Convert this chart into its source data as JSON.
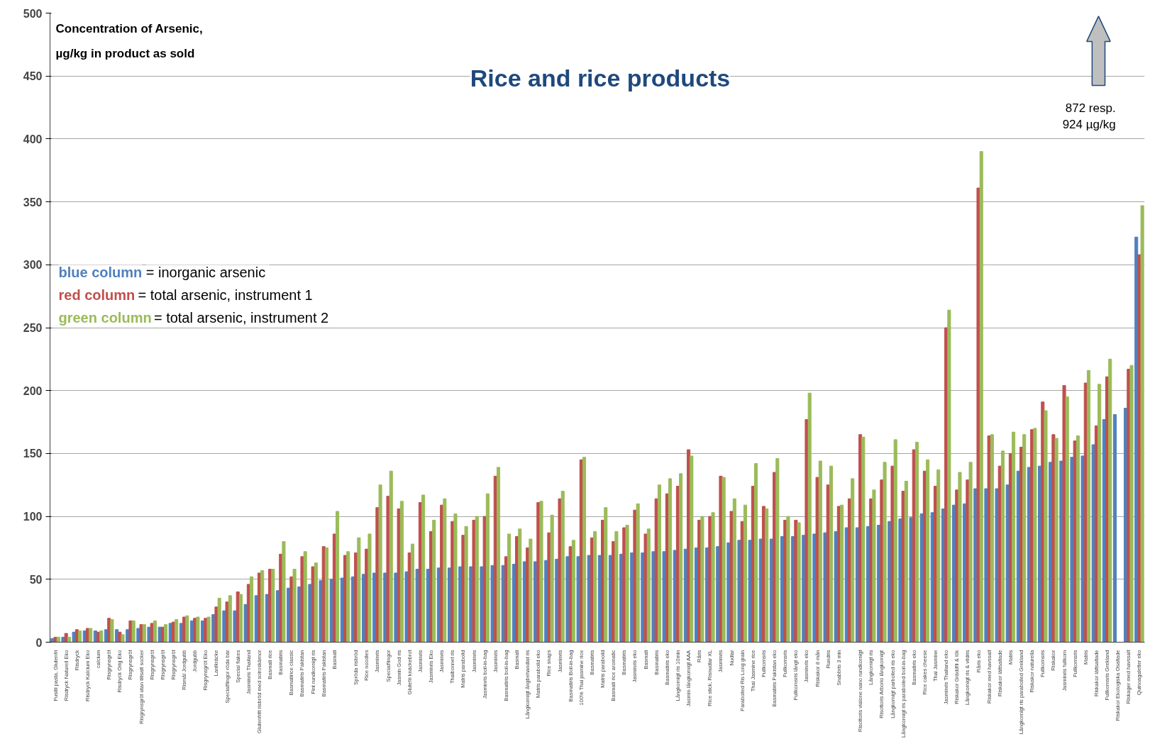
{
  "chart_data": {
    "type": "bar",
    "title": "Rice and rice products",
    "ylabel": "Concentration of Arsenic,\nµg/kg in product as sold",
    "categories": [
      "Fusilli pasta, Glutenfri",
      "Risdryck Naturell Eko",
      "Risdryck",
      "Risdryck Kalcium Eko",
      "calcium",
      "Risgrynsgröt",
      "Risdryck Orig Eko",
      "Risgrynsgröt",
      "Risgrynsgröt utan tillsatt socker",
      "Risgrynsgröt",
      "Risgrynsgröt",
      "Risgrynsgröt",
      "Rismål Jordgubb",
      "Jordgubb",
      "Risgrynsgröt Eko",
      "Lantkräcke",
      "Specialflingor röda bär",
      "Special flakes",
      "Jasminris Thailand",
      "Glutenfritt risbröd med solroskärnor",
      "Basmati rice",
      "Basmatiris",
      "Basmatirice classic",
      "Basmatiris Pakistan",
      "Fint rundkornigt ris",
      "Basmatiris Pakistan",
      "Basmati",
      null,
      "Spröda risbröd",
      "Rice noodles",
      "Jasminris",
      "Specialflingor",
      "Jasmin God ris",
      "Glutefri knäckebrot",
      "Jasminris",
      "Jasminris Eko",
      "Jasminris",
      "Thaibonnet ris",
      "Matris paraboild",
      "Jasminris",
      "Jasminris boil-in-bag",
      "Jasminris",
      "Basmatiris boil-in-bag",
      "Basmati",
      "Långkornigt ångbehandlat ris",
      "Matris paraboild eko",
      "Rice snaps",
      "Jasminris",
      "Basmatiris Boil-in-bag",
      "100% Thai jasmine rice",
      "Basmatiris",
      "Matris paraboild",
      "Basmati rice aromatic",
      "Basmatiris",
      "Jasminris eko",
      "Basmati",
      "Basmatiris",
      "Basmatiris eko",
      "Långkornigt ris 10min",
      "Jasmin långkornigt AAA",
      "Råris",
      "Rice stick, Risnudlar XL",
      "Jasminris",
      "Nudlar",
      "Paraboiled Ris Long grain",
      "Thai Jasmine rice",
      "Fullkornsris",
      "Basmatiris Pakistan eko",
      "Fullkornsris",
      "Fullkornsris långt eko",
      "Jasminris eko",
      "Riskakor 8 mån",
      "Rundris",
      "Snabbris 3 min",
      null,
      "Risottoris vialone nano rundkornigt",
      "Långkornigt ris",
      "Risottoris Arborio långkornigt",
      "Långkornigt parboiled ris eko",
      "Långkornigt ris paraboiled boil-in-bag",
      "Basmatiris eko",
      "Rice cakes cheese",
      "Thai Jasmine",
      "Jasminris Thailand eko",
      "Riskakor Gräddfil & lök",
      "Långkornigt ris & vildris",
      "Råris eko",
      "Riskakor med havssalt",
      "Riskakor lättsaltade",
      "Matris",
      "Långkornigt ris paraboiled Grekland",
      "Riskakor naturella",
      "Fullkornsris",
      "Riskakor",
      "Jasminris fullkorn",
      "Fullkornsris",
      "Matris",
      "Riskakor lättsaltade",
      "Fullkornsris Grekland",
      "Riskakor Ekologiska Osaltade",
      "Riskager med havssalt",
      "Quinoagaletter eko"
    ],
    "series": [
      {
        "name": "blue column = inorganic arsenic",
        "color": "#4f81bd",
        "values": [
          3,
          4,
          8,
          9,
          9,
          10,
          10,
          10,
          11,
          12,
          12,
          15,
          15,
          17,
          17,
          22,
          25,
          25,
          30,
          37,
          38,
          41,
          43,
          44,
          46,
          49,
          50,
          51,
          52,
          54,
          55,
          55,
          55,
          56,
          58,
          58,
          59,
          59,
          60,
          60,
          60,
          61,
          61,
          62,
          64,
          64,
          65,
          66,
          68,
          68,
          69,
          69,
          69,
          70,
          71,
          71,
          72,
          72,
          73,
          74,
          75,
          75,
          76,
          79,
          81,
          81,
          82,
          82,
          84,
          84,
          85,
          86,
          87,
          88,
          91,
          91,
          92,
          93,
          96,
          98,
          99,
          102,
          103,
          106,
          109,
          110,
          122,
          122,
          122,
          125,
          136,
          139,
          140,
          143,
          144,
          147,
          148,
          157,
          177,
          181,
          186,
          322
        ]
      },
      {
        "name": "red column = total arsenic, instrument 1",
        "color": "#c0504d",
        "values": [
          4,
          7,
          10,
          11,
          8,
          19,
          8,
          17,
          14,
          15,
          12,
          16,
          20,
          19,
          19,
          28,
          32,
          40,
          46,
          55,
          58,
          70,
          52,
          68,
          60,
          76,
          86,
          69,
          71,
          74,
          107,
          116,
          106,
          71,
          111,
          88,
          109,
          96,
          85,
          97,
          100,
          132,
          68,
          84,
          75,
          111,
          87,
          114,
          76,
          145,
          83,
          97,
          80,
          91,
          105,
          86,
          114,
          118,
          124,
          153,
          97,
          100,
          132,
          104,
          96,
          124,
          108,
          135,
          97,
          97,
          177,
          131,
          125,
          108,
          114,
          165,
          114,
          129,
          140,
          120,
          153,
          136,
          124,
          250,
          121,
          129,
          361,
          164,
          140,
          150,
          155,
          169,
          191,
          165,
          204,
          160,
          206,
          172,
          211,
          null,
          217,
          308
        ]
      },
      {
        "name": "green column = total arsenic, instrument 2",
        "color": "#9bbb59",
        "values": [
          4,
          4,
          9,
          11,
          9,
          18,
          6,
          17,
          14,
          17,
          14,
          18,
          21,
          20,
          20,
          35,
          37,
          38,
          52,
          57,
          58,
          80,
          58,
          72,
          63,
          75,
          104,
          72,
          83,
          86,
          125,
          136,
          112,
          78,
          117,
          97,
          114,
          102,
          92,
          100,
          118,
          139,
          86,
          90,
          82,
          112,
          101,
          120,
          81,
          147,
          88,
          107,
          88,
          93,
          110,
          90,
          125,
          130,
          134,
          148,
          100,
          103,
          131,
          114,
          109,
          142,
          106,
          146,
          100,
          95,
          198,
          144,
          140,
          109,
          130,
          163,
          121,
          143,
          161,
          128,
          159,
          145,
          137,
          264,
          135,
          143,
          390,
          165,
          152,
          167,
          165,
          170,
          184,
          162,
          195,
          164,
          216,
          205,
          225,
          null,
          220,
          347
        ]
      }
    ],
    "ylim": [
      0,
      500
    ],
    "yticks": [
      0,
      50,
      100,
      150,
      200,
      250,
      300,
      350,
      400,
      450,
      500
    ],
    "grid": "y",
    "legend": "left",
    "annotations": [
      "872 resp.\n924 µg/kg"
    ]
  }
}
